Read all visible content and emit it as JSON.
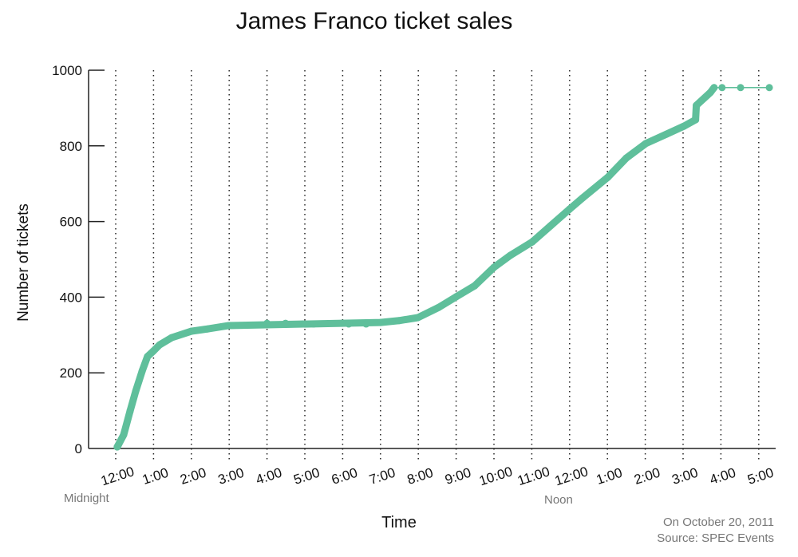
{
  "chart_data": {
    "type": "line",
    "title": "James Franco ticket sales",
    "xlabel": "Time",
    "ylabel": "Number of tickets",
    "ylim": [
      0,
      1000
    ],
    "yticks": [
      0,
      200,
      400,
      600,
      800,
      1000
    ],
    "xticks": [
      "12:00",
      "1:00",
      "2:00",
      "3:00",
      "4:00",
      "5:00",
      "6:00",
      "7:00",
      "8:00",
      "9:00",
      "10:00",
      "11:00",
      "12:00",
      "1:00",
      "2:00",
      "3:00",
      "4:00",
      "5:00"
    ],
    "x_annotations": [
      {
        "tick": "12:00",
        "label": "Midnight"
      },
      {
        "tick": "12:00 (noon)",
        "label": "Noon"
      }
    ],
    "grid": "vertical dotted lines at each hour",
    "color": "#5fbf9b",
    "x_hours_since_midnight": [
      0.04,
      0.21,
      0.38,
      0.53,
      0.7,
      0.84,
      0.99,
      1.16,
      1.48,
      2.0,
      2.43,
      2.99,
      4.0,
      4.49,
      4.95,
      5.23,
      6.16,
      6.62,
      7.0,
      7.49,
      7.99,
      8.54,
      9.0,
      9.49,
      10.0,
      10.44,
      11.01,
      11.5,
      12.0,
      12.34,
      13.01,
      13.5,
      14.01,
      14.56,
      15.02,
      15.33,
      15.35,
      15.72,
      15.82,
      16.03,
      16.52,
      17.28
    ],
    "values": [
      4,
      36,
      99,
      152,
      205,
      243,
      257,
      274,
      293,
      310,
      316,
      325,
      331,
      331,
      329,
      329,
      329,
      329,
      333,
      338,
      346,
      373,
      401,
      430,
      479,
      511,
      546,
      589,
      633,
      662,
      717,
      768,
      806,
      831,
      852,
      869,
      907,
      941,
      954,
      954,
      954,
      954
    ]
  },
  "footer": {
    "date": "On October 20, 2011",
    "source": "Source: SPEC Events"
  }
}
